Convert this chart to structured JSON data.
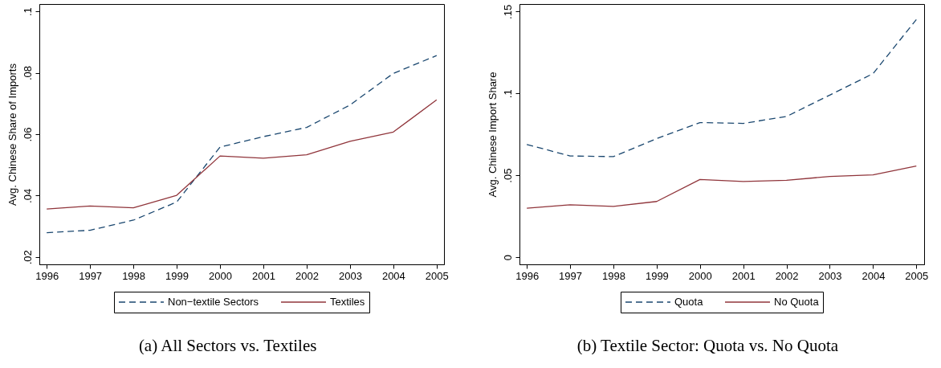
{
  "chart_data": [
    {
      "type": "line",
      "title": "(a) All Sectors vs. Textiles",
      "ylabel": "Avg. Chinese Share of Imports",
      "x": [
        1996,
        1997,
        1998,
        1999,
        2000,
        2001,
        2002,
        2003,
        2004,
        2005
      ],
      "xlim": [
        1995.83,
        2005.17
      ],
      "xticks": [
        1996,
        1997,
        1998,
        1999,
        2000,
        2001,
        2002,
        2003,
        2004,
        2005
      ],
      "ylim": [
        0.0176,
        0.1024
      ],
      "yticks": [
        {
          "value": 0.02,
          "label": ".02"
        },
        {
          "value": 0.04,
          "label": ".04"
        },
        {
          "value": 0.06,
          "label": ".06"
        },
        {
          "value": 0.08,
          "label": ".08"
        },
        {
          "value": 0.1,
          "label": ".1"
        }
      ],
      "series": [
        {
          "name": "Non−textile Sectors",
          "color": "#1a476f",
          "line_style": "dashed",
          "values": [
            0.0279,
            0.0287,
            0.032,
            0.0379,
            0.0558,
            0.0592,
            0.0622,
            0.0695,
            0.0798,
            0.0856
          ]
        },
        {
          "name": "Textiles",
          "color": "#90353b",
          "line_style": "solid",
          "values": [
            0.0356,
            0.0366,
            0.036,
            0.0401,
            0.0529,
            0.0522,
            0.0533,
            0.0577,
            0.0607,
            0.0712
          ]
        }
      ],
      "legend": "bottom",
      "grid": false
    },
    {
      "type": "line",
      "title": "(b) Textile Sector: Quota vs. No Quota",
      "ylabel": "Avg. Chinese Import Share",
      "x": [
        1996,
        1997,
        1998,
        1999,
        2000,
        2001,
        2002,
        2003,
        2004,
        2005
      ],
      "xlim": [
        1995.83,
        2005.18
      ],
      "xticks": [
        1996,
        1997,
        1998,
        1999,
        2000,
        2001,
        2002,
        2003,
        2004,
        2005
      ],
      "ylim": [
        -0.0044,
        0.1546
      ],
      "yticks": [
        0,
        {
          "value": 0.05,
          "label": ".05"
        },
        {
          "value": 0.1,
          "label": ".1"
        },
        {
          "value": 0.15,
          "label": ".15"
        }
      ],
      "series": [
        {
          "name": "Quota",
          "color": "#1a476f",
          "line_style": "dashed",
          "values": [
            0.0688,
            0.0618,
            0.0614,
            0.0724,
            0.0822,
            0.0817,
            0.0859,
            0.099,
            0.1121,
            0.1451
          ]
        },
        {
          "name": "No Quota",
          "color": "#90353b",
          "line_style": "solid",
          "values": [
            0.0299,
            0.032,
            0.031,
            0.034,
            0.0474,
            0.0462,
            0.0469,
            0.0493,
            0.0503,
            0.0557
          ]
        }
      ],
      "legend": "bottom",
      "grid": false
    }
  ]
}
